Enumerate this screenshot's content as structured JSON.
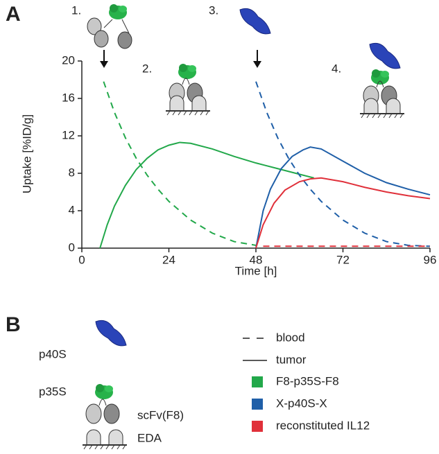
{
  "panels": {
    "a": "A",
    "b": "B"
  },
  "steps": [
    "1.",
    "2.",
    "3.",
    "4."
  ],
  "chart_data": {
    "type": "line",
    "xlabel": "Time [h]",
    "ylabel": "Uptake [%ID/g]",
    "xlim": [
      0,
      96
    ],
    "xticks": [
      0,
      24,
      48,
      72,
      96
    ],
    "ylim": [
      0,
      20
    ],
    "yticks": [
      0,
      4,
      8,
      12,
      16,
      20
    ],
    "series": [
      {
        "color": "#22a84a",
        "dashed": true,
        "x": [
          6,
          9,
          12,
          15,
          18,
          21,
          24,
          30,
          36,
          42,
          48
        ],
        "values": [
          17.8,
          14.5,
          11.8,
          9.6,
          7.8,
          6.3,
          5.0,
          3.0,
          1.6,
          0.7,
          0.3
        ]
      },
      {
        "color": "#22a84a",
        "dashed": false,
        "x": [
          5,
          7,
          9,
          12,
          15,
          18,
          21,
          24,
          27,
          30,
          36,
          42,
          48,
          54,
          60,
          64
        ],
        "values": [
          0,
          2.5,
          4.5,
          6.7,
          8.4,
          9.6,
          10.5,
          11.0,
          11.3,
          11.2,
          10.6,
          9.8,
          9.1,
          8.5,
          7.9,
          7.5
        ]
      },
      {
        "color": "#1f5fa8",
        "dashed": true,
        "x": [
          48,
          51,
          54,
          57,
          60,
          63,
          66,
          72,
          78,
          84,
          90,
          96
        ],
        "values": [
          17.8,
          14.5,
          11.8,
          9.6,
          7.8,
          6.3,
          5.0,
          3.0,
          1.6,
          0.7,
          0.3,
          0.2
        ]
      },
      {
        "color": "#1f5fa8",
        "dashed": false,
        "x": [
          48,
          50,
          52,
          55,
          58,
          61,
          63,
          66,
          72,
          78,
          84,
          90,
          96
        ],
        "values": [
          0,
          4,
          6.3,
          8.5,
          9.8,
          10.5,
          10.8,
          10.6,
          9.3,
          8.0,
          7.0,
          6.3,
          5.7
        ]
      },
      {
        "color": "#e0303a",
        "dashed": false,
        "x": [
          48,
          50,
          53,
          56,
          60,
          63,
          66,
          72,
          78,
          84,
          90,
          96
        ],
        "values": [
          0,
          2.5,
          4.8,
          6.2,
          7.1,
          7.4,
          7.5,
          7.1,
          6.5,
          6.0,
          5.6,
          5.3
        ]
      },
      {
        "color": "#e0303a",
        "dashed": true,
        "x": [
          50,
          96
        ],
        "values": [
          0.2,
          0.2
        ]
      }
    ]
  },
  "legend": {
    "styles": [
      "blood",
      "tumor"
    ],
    "colors": [
      {
        "label": "F8-p35S-F8",
        "color": "#22a84a"
      },
      {
        "label": "X-p40S-X",
        "color": "#1f5fa8"
      },
      {
        "label": "reconstituted IL12",
        "color": "#e0303a"
      }
    ]
  },
  "schematic": {
    "p40s": "p40S",
    "p35s": "p35S",
    "scfv": "scFv(F8)",
    "eda": "EDA"
  }
}
